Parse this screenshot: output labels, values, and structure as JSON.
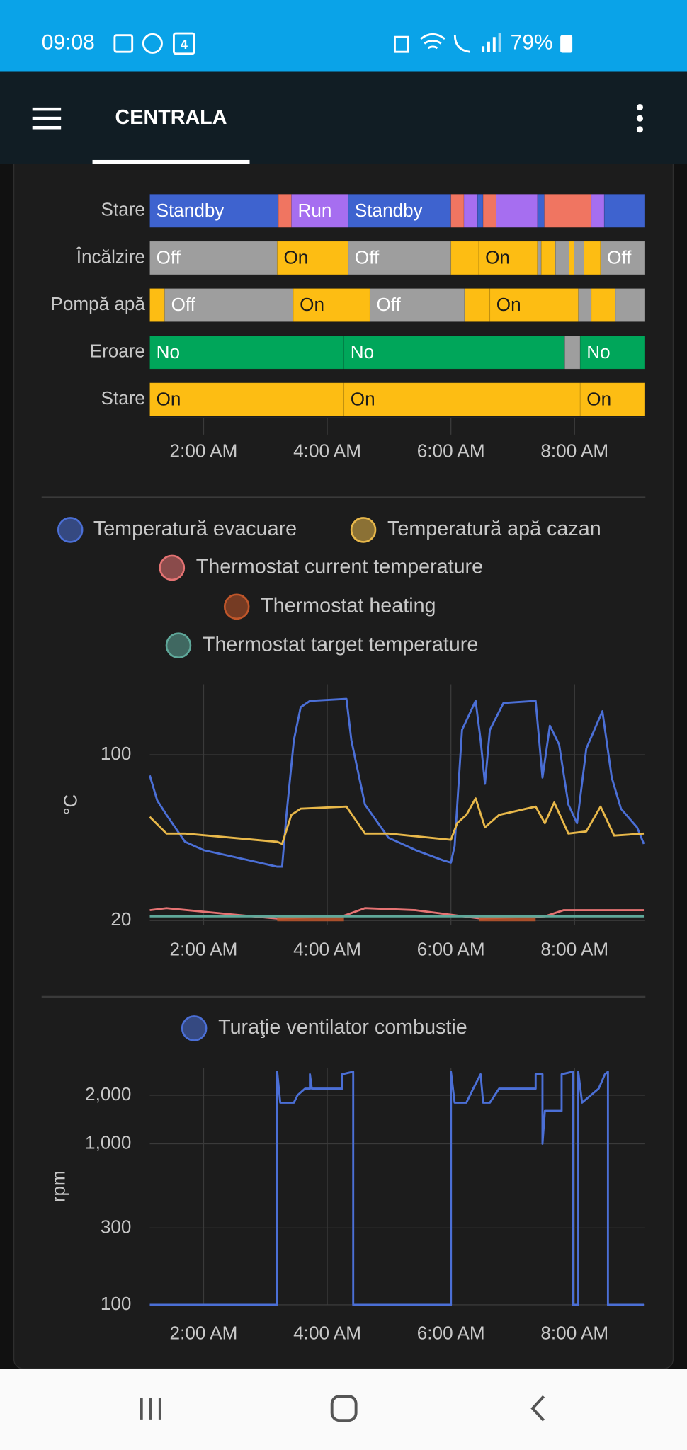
{
  "status_bar": {
    "time": "09:08",
    "calendar_day": "4",
    "battery": "79%"
  },
  "app_bar": {
    "title": "CENTRALA"
  },
  "chart_data": [
    {
      "type": "timeline",
      "xlim": [
        1.13,
        9.13
      ],
      "xticks": [
        {
          "value": 2,
          "label": "2:00 AM"
        },
        {
          "value": 4,
          "label": "4:00 AM"
        },
        {
          "value": 6,
          "label": "6:00 AM"
        },
        {
          "value": 8,
          "label": "8:00 AM"
        }
      ],
      "rows": [
        {
          "label": "Stare",
          "segments": [
            {
              "start": 1.13,
              "end": 3.21,
              "color": "#3e63cf",
              "label": "Standby"
            },
            {
              "start": 3.21,
              "end": 3.42,
              "color": "#f07561"
            },
            {
              "start": 3.42,
              "end": 4.34,
              "color": "#a66ef0",
              "label": "Run"
            },
            {
              "start": 4.34,
              "end": 6.0,
              "color": "#3e63cf",
              "label": "Standby"
            },
            {
              "start": 6.0,
              "end": 6.21,
              "color": "#f07561"
            },
            {
              "start": 6.21,
              "end": 6.43,
              "color": "#a66ef0"
            },
            {
              "start": 6.43,
              "end": 6.52,
              "color": "#3e63cf"
            },
            {
              "start": 6.52,
              "end": 6.73,
              "color": "#f07561"
            },
            {
              "start": 6.73,
              "end": 7.4,
              "color": "#a66ef0"
            },
            {
              "start": 7.4,
              "end": 7.51,
              "color": "#3e63cf"
            },
            {
              "start": 7.51,
              "end": 8.27,
              "color": "#f07561"
            },
            {
              "start": 8.27,
              "end": 8.48,
              "color": "#a66ef0"
            },
            {
              "start": 8.48,
              "end": 9.13,
              "color": "#3e63cf"
            }
          ]
        },
        {
          "label": "Încălzire",
          "segments": [
            {
              "start": 1.13,
              "end": 3.19,
              "color": "#9e9e9e",
              "label": "Off"
            },
            {
              "start": 3.19,
              "end": 4.34,
              "color": "#fdbd13",
              "label": "On"
            },
            {
              "start": 4.34,
              "end": 6.0,
              "color": "#9e9e9e",
              "label": "Off"
            },
            {
              "start": 6.0,
              "end": 6.45,
              "color": "#fdbd13"
            },
            {
              "start": 6.45,
              "end": 7.4,
              "color": "#fdbd13",
              "label": "On"
            },
            {
              "start": 7.4,
              "end": 7.46,
              "color": "#9e9e9e"
            },
            {
              "start": 7.46,
              "end": 7.69,
              "color": "#fdbd13"
            },
            {
              "start": 7.69,
              "end": 7.91,
              "color": "#9e9e9e"
            },
            {
              "start": 7.91,
              "end": 7.99,
              "color": "#fdbd13"
            },
            {
              "start": 7.99,
              "end": 8.15,
              "color": "#9e9e9e"
            },
            {
              "start": 8.15,
              "end": 8.42,
              "color": "#fdbd13"
            },
            {
              "start": 8.42,
              "end": 9.13,
              "color": "#9e9e9e",
              "label": "Off"
            }
          ]
        },
        {
          "label": "Pompă apă",
          "segments": [
            {
              "start": 1.13,
              "end": 1.37,
              "color": "#fdbd13"
            },
            {
              "start": 1.37,
              "end": 3.45,
              "color": "#9e9e9e",
              "label": "Off"
            },
            {
              "start": 3.45,
              "end": 4.69,
              "color": "#fdbd13",
              "label": "On"
            },
            {
              "start": 4.69,
              "end": 6.22,
              "color": "#9e9e9e",
              "label": "Off"
            },
            {
              "start": 6.22,
              "end": 6.63,
              "color": "#fdbd13"
            },
            {
              "start": 6.63,
              "end": 8.06,
              "color": "#fdbd13",
              "label": "On"
            },
            {
              "start": 8.06,
              "end": 8.27,
              "color": "#9e9e9e"
            },
            {
              "start": 8.27,
              "end": 8.66,
              "color": "#fdbd13"
            },
            {
              "start": 8.66,
              "end": 9.13,
              "color": "#9e9e9e"
            }
          ]
        },
        {
          "label": "Eroare",
          "segments": [
            {
              "start": 1.13,
              "end": 4.27,
              "color": "#00a65a",
              "label": "No"
            },
            {
              "start": 4.27,
              "end": 7.84,
              "color": "#00a65a",
              "label": "No"
            },
            {
              "start": 7.84,
              "end": 8.09,
              "color": "#9e9e9e"
            },
            {
              "start": 8.09,
              "end": 9.13,
              "color": "#00a65a",
              "label": "No"
            }
          ]
        },
        {
          "label": "Stare",
          "segments": [
            {
              "start": 1.13,
              "end": 4.27,
              "color": "#fdbd13",
              "label": "On"
            },
            {
              "start": 4.27,
              "end": 8.09,
              "color": "#fdbd13",
              "label": "On"
            },
            {
              "start": 8.09,
              "end": 9.13,
              "color": "#fdbd13",
              "label": "On"
            }
          ]
        }
      ]
    },
    {
      "type": "line",
      "ylabel": "°C",
      "xlim": [
        1.13,
        9.13
      ],
      "ylim": [
        18,
        134
      ],
      "xticks": [
        {
          "value": 2,
          "label": "2:00 AM"
        },
        {
          "value": 4,
          "label": "4:00 AM"
        },
        {
          "value": 6,
          "label": "6:00 AM"
        },
        {
          "value": 8,
          "label": "8:00 AM"
        }
      ],
      "yticks": [
        20,
        100
      ],
      "grid": true,
      "series": [
        {
          "name": "Temperatură evacuare",
          "color": "#4b6fd6",
          "x": [
            1.13,
            1.25,
            1.4,
            1.7,
            2.0,
            2.45,
            2.9,
            3.19,
            3.27,
            3.34,
            3.46,
            3.57,
            3.72,
            4.31,
            4.39,
            4.61,
            4.99,
            5.43,
            5.88,
            6.0,
            6.06,
            6.18,
            6.4,
            6.48,
            6.55,
            6.63,
            6.85,
            7.37,
            7.48,
            7.6,
            7.75,
            7.9,
            8.04,
            8.19,
            8.45,
            8.6,
            8.75,
            9.01,
            9.12
          ],
          "values": [
            90,
            78,
            71,
            58,
            54,
            51,
            48,
            46,
            46,
            71,
            107,
            123,
            126,
            127,
            107,
            76,
            60,
            54,
            49,
            48,
            56,
            112,
            126,
            107,
            86,
            112,
            125,
            126,
            89,
            114,
            105,
            76,
            67,
            103,
            121,
            89,
            74,
            65,
            57
          ]
        },
        {
          "name": "Temperatură apă cazan",
          "color": "#e8b84a",
          "x": [
            1.13,
            1.4,
            1.7,
            3.19,
            3.27,
            3.42,
            3.57,
            4.31,
            4.61,
            4.99,
            6.0,
            6.1,
            6.25,
            6.4,
            6.55,
            6.78,
            7.37,
            7.52,
            7.67,
            7.9,
            8.19,
            8.42,
            8.64,
            9.12
          ],
          "values": [
            70,
            62,
            62,
            58,
            57,
            71,
            74,
            75,
            62,
            62,
            59,
            67,
            71,
            79,
            65,
            71,
            75,
            67,
            77,
            62,
            63,
            75,
            61,
            62
          ]
        },
        {
          "name": "Thermostat current temperature",
          "color": "#e57373",
          "x": [
            1.13,
            1.4,
            2.45,
            3.19,
            4.24,
            4.61,
            5.43,
            6.48,
            7.52,
            7.82,
            9.12
          ],
          "values": [
            25,
            26,
            23,
            21,
            22,
            26,
            25,
            21,
            22,
            25,
            25
          ]
        },
        {
          "name": "Thermostat heating",
          "color": "#c0562a",
          "x": [
            3.19,
            4.27,
            4.27,
            6.45,
            7.37
          ],
          "values": [
            21,
            21,
            null,
            21,
            21
          ]
        },
        {
          "name": "Thermostat target temperature",
          "color": "#5fa89a",
          "x": [
            1.13,
            9.12
          ],
          "values": [
            22,
            22
          ]
        }
      ]
    },
    {
      "type": "line",
      "log_scale": true,
      "ylabel": "rpm",
      "xlim": [
        1.13,
        9.13
      ],
      "ylim": [
        100,
        2950
      ],
      "xticks": [
        {
          "value": 2,
          "label": "2:00 AM"
        },
        {
          "value": 4,
          "label": "4:00 AM"
        },
        {
          "value": 6,
          "label": "6:00 AM"
        },
        {
          "value": 8,
          "label": "8:00 AM"
        }
      ],
      "yticks": [
        100,
        300,
        {
          "value": 1000,
          "label": "1,000"
        },
        {
          "value": 2000,
          "label": "2,000"
        }
      ],
      "grid": true,
      "series": [
        {
          "name": "Turaţie ventilator combustie",
          "color": "#4b6fd6",
          "x": [
            1.13,
            3.19,
            3.19,
            3.24,
            3.46,
            3.52,
            3.64,
            3.72,
            3.72,
            3.75,
            4.24,
            4.24,
            4.42,
            4.42,
            6.0,
            6.0,
            6.06,
            6.25,
            6.36,
            6.48,
            6.52,
            6.63,
            6.78,
            7.37,
            7.37,
            7.48,
            7.48,
            7.52,
            7.79,
            7.79,
            7.97,
            7.97,
            8.06,
            8.06,
            8.12,
            8.39,
            8.49,
            8.54,
            8.54,
            9.12
          ],
          "values": [
            100,
            100,
            2800,
            1800,
            1800,
            2000,
            2200,
            2200,
            2700,
            2200,
            2200,
            2700,
            2800,
            100,
            100,
            2800,
            1800,
            1800,
            2200,
            2700,
            1800,
            1800,
            2200,
            2200,
            2700,
            2700,
            1000,
            1600,
            1600,
            2700,
            2800,
            100,
            100,
            2800,
            1800,
            2200,
            2700,
            2800,
            100,
            100
          ]
        }
      ]
    }
  ]
}
